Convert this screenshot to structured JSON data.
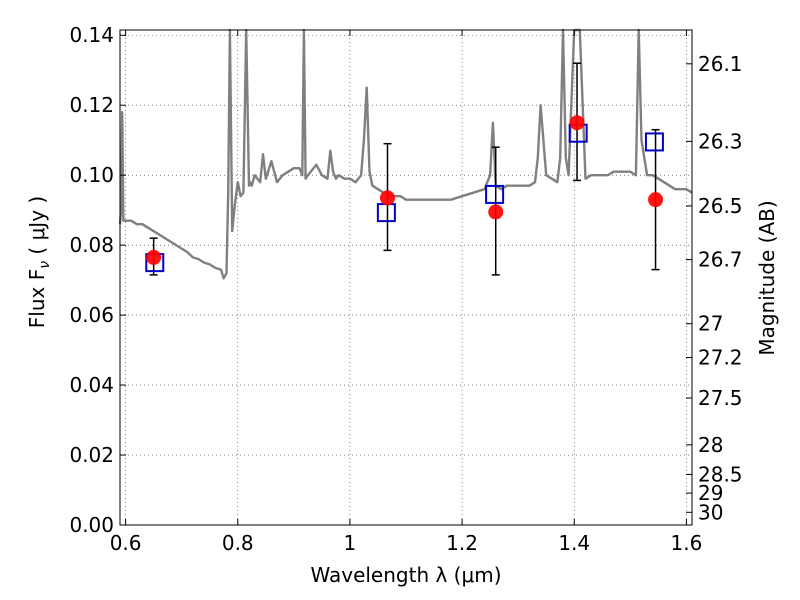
{
  "chart_data": {
    "type": "scatter",
    "xlabel": "Wavelength  λ (μm)",
    "ylabel": "Flux  F",
    "ylabel_sub": "ν",
    "ylabel_unit": "  ( μJy )",
    "y2label": "Magnitude (AB)",
    "xlim": [
      0.59,
      1.61
    ],
    "ylim": [
      0.0,
      0.1415
    ],
    "grid": true,
    "x_ticks": [
      0.6,
      0.8,
      1.0,
      1.2,
      1.4,
      1.6
    ],
    "x_tick_labels": [
      "0.6",
      "0.8",
      "1",
      "1.2",
      "1.4",
      "1.6"
    ],
    "y_ticks": [
      0.0,
      0.02,
      0.04,
      0.06,
      0.08,
      0.1,
      0.12,
      0.14
    ],
    "y_tick_labels": [
      "0.00",
      "0.02",
      "0.04",
      "0.06",
      "0.08",
      "0.10",
      "0.12",
      "0.14"
    ],
    "mag_ticks": [
      26.1,
      26.3,
      26.5,
      26.7,
      27,
      27.2,
      27.5,
      28,
      28.5,
      29,
      30
    ],
    "mag_tick_labels": [
      "26.1",
      "26.3",
      "26.5",
      "26.7",
      "27",
      "27.2",
      "27.5",
      "28",
      "28.5",
      "29",
      "30"
    ],
    "series": [
      {
        "kind": "line",
        "color": "#808080",
        "x": [
          0.59,
          0.592,
          0.594,
          0.596,
          0.598,
          0.6,
          0.61,
          0.62,
          0.63,
          0.64,
          0.65,
          0.66,
          0.67,
          0.68,
          0.69,
          0.7,
          0.71,
          0.72,
          0.73,
          0.74,
          0.75,
          0.76,
          0.77,
          0.775,
          0.78,
          0.783,
          0.786,
          0.79,
          0.795,
          0.8,
          0.805,
          0.81,
          0.815,
          0.82,
          0.822,
          0.825,
          0.83,
          0.84,
          0.845,
          0.85,
          0.86,
          0.865,
          0.87,
          0.88,
          0.89,
          0.9,
          0.91,
          0.915,
          0.918,
          0.921,
          0.925,
          0.93,
          0.94,
          0.95,
          0.96,
          0.965,
          0.97,
          0.975,
          0.98,
          0.99,
          1.0,
          1.01,
          1.02,
          1.025,
          1.03,
          1.035,
          1.04,
          1.05,
          1.06,
          1.07,
          1.075,
          1.08,
          1.09,
          1.1,
          1.12,
          1.14,
          1.16,
          1.18,
          1.2,
          1.22,
          1.24,
          1.25,
          1.255,
          1.26,
          1.27,
          1.28,
          1.3,
          1.32,
          1.33,
          1.335,
          1.34,
          1.35,
          1.36,
          1.37,
          1.375,
          1.38,
          1.385,
          1.39,
          1.4,
          1.41,
          1.42,
          1.43,
          1.44,
          1.45,
          1.46,
          1.47,
          1.48,
          1.49,
          1.5,
          1.51,
          1.515,
          1.52,
          1.53,
          1.54,
          1.55,
          1.56,
          1.57,
          1.58,
          1.59,
          1.6,
          1.61
        ],
        "y": [
          0.086,
          0.09,
          0.118,
          0.087,
          0.087,
          0.087,
          0.087,
          0.086,
          0.086,
          0.085,
          0.084,
          0.083,
          0.082,
          0.081,
          0.08,
          0.079,
          0.078,
          0.0765,
          0.076,
          0.075,
          0.0745,
          0.0735,
          0.073,
          0.0705,
          0.072,
          0.095,
          0.1415,
          0.084,
          0.092,
          0.098,
          0.094,
          0.095,
          0.1415,
          0.097,
          0.098,
          0.097,
          0.1,
          0.098,
          0.106,
          0.099,
          0.104,
          0.101,
          0.098,
          0.1,
          0.101,
          0.102,
          0.102,
          0.1,
          0.1415,
          0.099,
          0.1,
          0.101,
          0.103,
          0.1,
          0.099,
          0.107,
          0.101,
          0.099,
          0.1,
          0.099,
          0.099,
          0.098,
          0.1,
          0.11,
          0.125,
          0.101,
          0.097,
          0.096,
          0.095,
          0.095,
          0.094,
          0.094,
          0.094,
          0.093,
          0.093,
          0.093,
          0.093,
          0.093,
          0.094,
          0.095,
          0.096,
          0.1,
          0.115,
          0.097,
          0.096,
          0.097,
          0.097,
          0.097,
          0.098,
          0.105,
          0.12,
          0.1,
          0.099,
          0.098,
          0.105,
          0.1415,
          0.105,
          0.1,
          0.1415,
          0.1415,
          0.099,
          0.1,
          0.1,
          0.1,
          0.1,
          0.101,
          0.101,
          0.101,
          0.101,
          0.1,
          0.1415,
          0.11,
          0.1,
          0.1,
          0.099,
          0.098,
          0.097,
          0.096,
          0.096,
          0.096,
          0.095
        ]
      },
      {
        "kind": "points",
        "marker": "circle",
        "color": "#ff0000",
        "x": [
          0.65,
          1.067,
          1.26,
          1.405,
          1.545
        ],
        "y": [
          0.0765,
          0.0935,
          0.0895,
          0.115,
          0.093
        ],
        "yerr": [
          [
            0.005,
            0.0055
          ],
          [
            0.015,
            0.0155
          ],
          [
            0.018,
            0.0185
          ],
          [
            0.0165,
            0.017
          ],
          [
            0.02,
            0.02
          ]
        ]
      },
      {
        "kind": "points",
        "marker": "square-open",
        "color": "#0000cc",
        "x": [
          0.652,
          1.065,
          1.258,
          1.407,
          1.543
        ],
        "y": [
          0.075,
          0.0893,
          0.0945,
          0.112,
          0.1095
        ]
      }
    ]
  }
}
